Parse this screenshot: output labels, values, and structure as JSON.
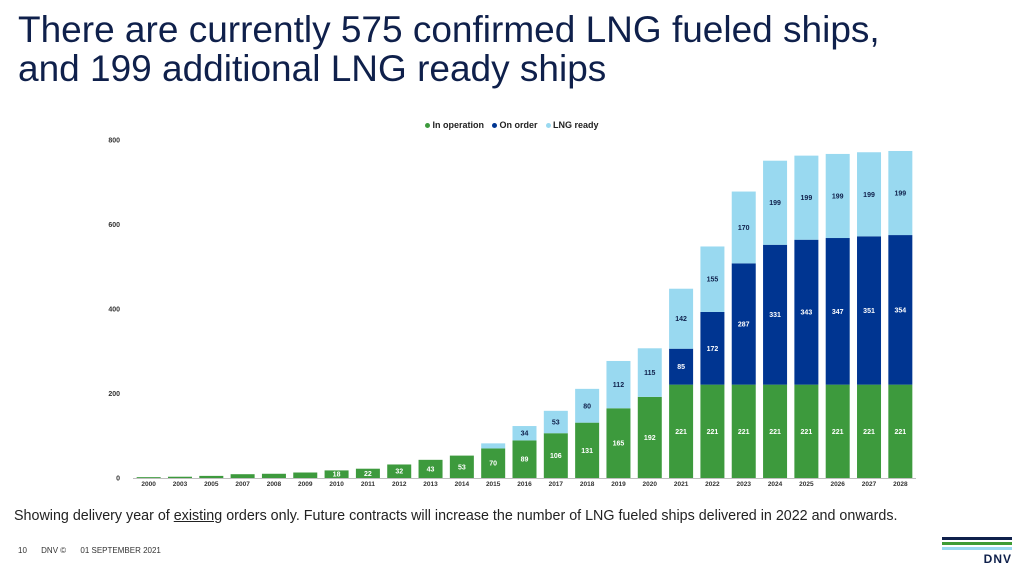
{
  "title": {
    "line1": "There are currently 575 confirmed LNG fueled ships,",
    "line2": "and 199 additional LNG ready ships"
  },
  "footnote": {
    "before": "Showing delivery year of ",
    "underlined": "existing",
    "after": " orders only. Future contracts will increase the number of LNG fueled ships delivered in 2022 and onwards."
  },
  "footer": {
    "page": "10",
    "brand": "DNV ©",
    "date": "01 SEPTEMBER 2021"
  },
  "logo": {
    "text": "DNV"
  },
  "colors": {
    "in_operation": "#3d9a3d",
    "on_order": "#003591",
    "lng_ready": "#99d9f0",
    "title": "#0f204b",
    "logo_stripes": [
      "#0f204b",
      "#3f9c35",
      "#99d9f0"
    ]
  },
  "chart_data": {
    "type": "bar",
    "stacked": true,
    "categories": [
      "2000",
      "2003",
      "2005",
      "2007",
      "2008",
      "2009",
      "2010",
      "2011",
      "2012",
      "2013",
      "2014",
      "2015",
      "2016",
      "2017",
      "2018",
      "2019",
      "2020",
      "2021",
      "2022",
      "2023",
      "2024",
      "2025",
      "2026",
      "2027",
      "2028"
    ],
    "series": [
      {
        "name": "In operation",
        "color": "#3d9a3d",
        "values": [
          2,
          3,
          5,
          9,
          10,
          13,
          18,
          22,
          32,
          43,
          53,
          70,
          89,
          106,
          131,
          165,
          192,
          221,
          221,
          221,
          221,
          221,
          221,
          221,
          221
        ],
        "labels": [
          "",
          "",
          "",
          "",
          "",
          "",
          "18",
          "22",
          "32",
          "43",
          "53",
          "70",
          "89",
          "106",
          "131",
          "165",
          "192",
          "221",
          "221",
          "221",
          "221",
          "221",
          "221",
          "221",
          "221"
        ]
      },
      {
        "name": "On order",
        "color": "#003591",
        "values": [
          0,
          0,
          0,
          0,
          0,
          0,
          0,
          0,
          0,
          0,
          0,
          0,
          0,
          0,
          0,
          0,
          0,
          85,
          172,
          287,
          331,
          343,
          347,
          351,
          354
        ],
        "labels": [
          "",
          "",
          "",
          "",
          "",
          "",
          "",
          "",
          "",
          "",
          "",
          "",
          "",
          "",
          "",
          "",
          "",
          "85",
          "172",
          "287",
          "331",
          "343",
          "347",
          "351",
          "354"
        ]
      },
      {
        "name": "LNG ready",
        "color": "#99d9f0",
        "values": [
          0,
          0,
          0,
          0,
          0,
          0,
          0,
          0,
          0,
          0,
          0,
          12,
          34,
          53,
          80,
          112,
          115,
          142,
          155,
          170,
          199,
          199,
          199,
          199,
          199
        ],
        "labels": [
          "",
          "",
          "",
          "",
          "",
          "",
          "",
          "",
          "",
          "",
          "",
          "",
          "34",
          "53",
          "80",
          "112",
          "115",
          "142",
          "155",
          "170",
          "199",
          "199",
          "199",
          "199",
          "199"
        ]
      }
    ],
    "yticks": [
      "0",
      "200",
      "400",
      "600",
      "800"
    ],
    "ylim": [
      0,
      800
    ],
    "legend_position": "top",
    "grid": false,
    "xlabel": "",
    "ylabel": ""
  }
}
